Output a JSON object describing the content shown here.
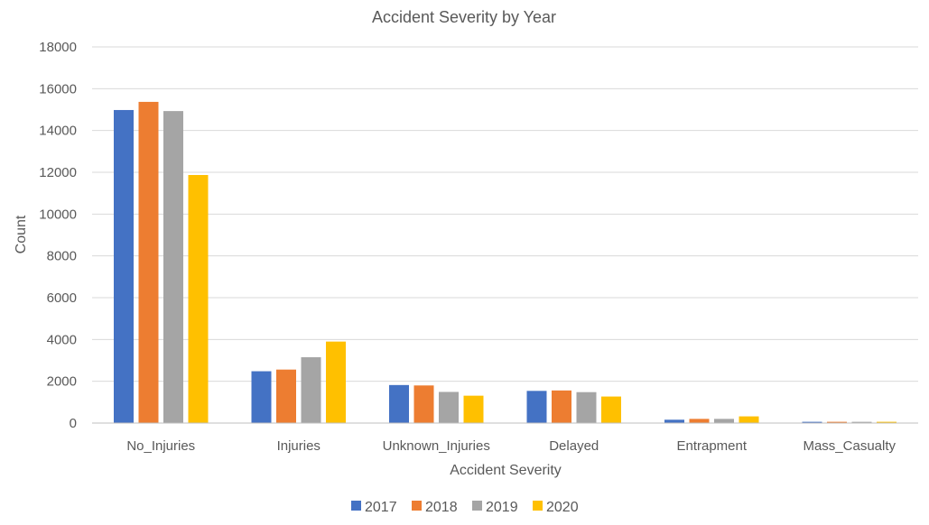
{
  "chart_data": {
    "type": "bar",
    "title": "Accident Severity by Year",
    "xlabel": "Accident Severity",
    "ylabel": "Count",
    "ylim": [
      0,
      18000
    ],
    "yticks": [
      0,
      2000,
      4000,
      6000,
      8000,
      10000,
      12000,
      14000,
      16000,
      18000
    ],
    "grid": true,
    "legend_position": "bottom",
    "categories": [
      "No_Injuries",
      "Injuries",
      "Unknown_Injuries",
      "Delayed",
      "Entrapment",
      "Mass_Casualty"
    ],
    "series": [
      {
        "name": "2017",
        "color": "#4472c4",
        "values": [
          14980,
          2480,
          1820,
          1540,
          160,
          60
        ]
      },
      {
        "name": "2018",
        "color": "#ed7d31",
        "values": [
          15370,
          2560,
          1800,
          1560,
          200,
          60
        ]
      },
      {
        "name": "2019",
        "color": "#a5a5a5",
        "values": [
          14930,
          3150,
          1490,
          1480,
          200,
          60
        ]
      },
      {
        "name": "2020",
        "color": "#ffc000",
        "values": [
          11870,
          3900,
          1310,
          1270,
          320,
          60
        ]
      }
    ]
  }
}
